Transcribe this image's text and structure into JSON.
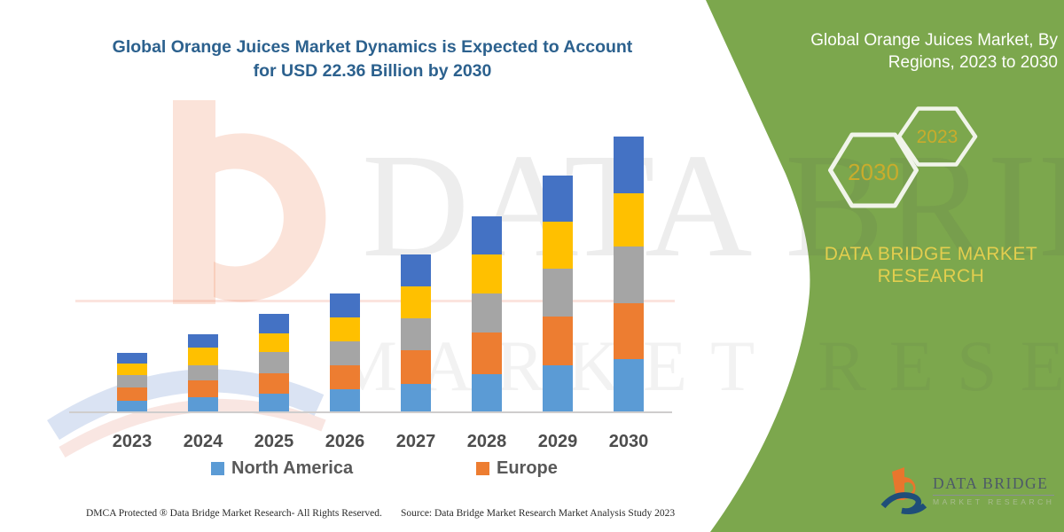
{
  "page": {
    "background": "#ffffff",
    "panel_green": "#7CA74D"
  },
  "chart": {
    "title_line1": "Global Orange Juices Market Dynamics is Expected to Account",
    "title_line2": "for USD 22.36 Billion by 2030",
    "title_color": "#2C618E"
  },
  "chart_data": {
    "type": "bar",
    "stacked": true,
    "unit": "USD Billion",
    "categories": [
      "2023",
      "2024",
      "2025",
      "2026",
      "2027",
      "2028",
      "2029",
      "2030"
    ],
    "series": [
      {
        "name": "North America",
        "color": "#5B9BD5",
        "values": [
          0.97,
          1.2,
          1.49,
          1.85,
          2.32,
          3.1,
          3.8,
          4.34
        ]
      },
      {
        "name": "Europe",
        "color": "#ED7D31",
        "values": [
          1.08,
          1.36,
          1.68,
          1.98,
          2.75,
          3.35,
          3.95,
          4.48
        ]
      },
      {
        "name": "(unlabeled gray region)",
        "color": "#A5A5A5",
        "values": [
          0.96,
          1.28,
          1.75,
          1.95,
          2.52,
          3.2,
          3.9,
          4.65
        ]
      },
      {
        "name": "(unlabeled yellow region)",
        "color": "#FFC000",
        "values": [
          0.92,
          1.38,
          1.51,
          1.92,
          2.64,
          3.15,
          3.85,
          4.26
        ]
      },
      {
        "name": "(unlabeled blue region)",
        "color": "#4472C4",
        "values": [
          0.89,
          1.11,
          1.55,
          1.94,
          2.57,
          3.09,
          3.7,
          4.63
        ]
      }
    ],
    "totals": [
      4.82,
      6.33,
      7.98,
      9.64,
      12.8,
      15.89,
      19.2,
      22.36
    ],
    "highlight_total_2030": 22.36,
    "ylim": [
      0,
      22.36
    ],
    "grid": false,
    "legend_position": "bottom",
    "legend_visible_entries": [
      "North America",
      "Europe"
    ]
  },
  "legend": {
    "north_america": "North America",
    "europe": "Europe",
    "na_color": "#5B9BD5",
    "eu_color": "#ED7D31"
  },
  "side_panel": {
    "title_line1": "Global Orange Juices Market, By",
    "title_line2": "Regions, 2023 to 2030",
    "hexagon_large": "2030",
    "hexagon_small": "2023",
    "brand_line1": "DATA BRIDGE MARKET",
    "brand_line2": "RESEARCH",
    "brand_text_color": "#E2CE4E",
    "hexagon_text_color": "#C9AC2C"
  },
  "watermark": {
    "line1": "DATA BRIDGE",
    "line2": "MARKET RESEARCH"
  },
  "logo": {
    "brand": "DATA BRIDGE",
    "sub": "MARKET RESEARCH"
  },
  "footer": {
    "left": "DMCA Protected ® Data Bridge Market Research-  All Rights Reserved.",
    "right": "Source: Data Bridge Market Research  Market Analysis Study 2023"
  }
}
